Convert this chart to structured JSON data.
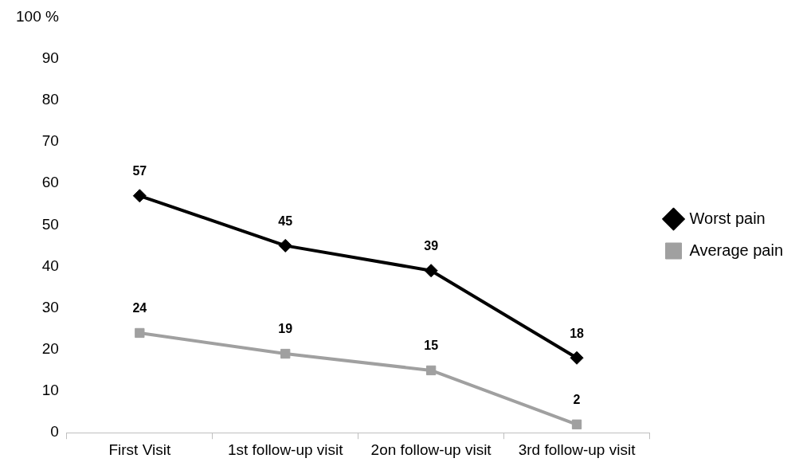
{
  "chart_data": {
    "type": "line",
    "categories": [
      "First Visit",
      "1st follow-up visit",
      "2on follow-up visit",
      "3rd follow-up visit"
    ],
    "series": [
      {
        "name": "Worst pain",
        "color": "#000000",
        "values": [
          57,
          45,
          39,
          18
        ],
        "marker": "diamond"
      },
      {
        "name": "Average pain",
        "color": "#a0a0a0",
        "values": [
          24,
          19,
          15,
          2
        ],
        "marker": "square"
      }
    ],
    "ylim": [
      0,
      100
    ],
    "yticks": [
      0,
      10,
      20,
      30,
      40,
      50,
      60,
      70,
      80,
      90,
      {
        "value": 100,
        "label": "100 %"
      }
    ],
    "grid": false,
    "legend": "right",
    "data_labels": true
  }
}
